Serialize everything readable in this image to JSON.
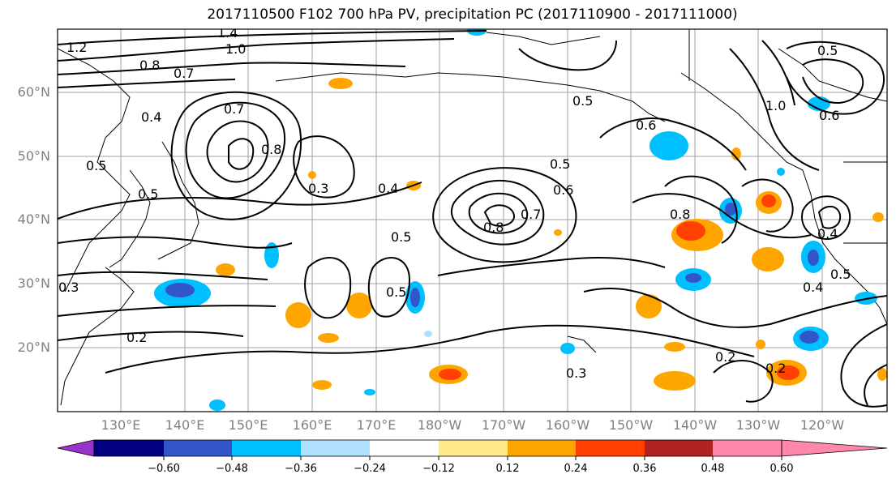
{
  "title": "2017110500 F102 700 hPa PV, precipitation PC (2017110900 - 2017111000)",
  "lat_labels": [
    "60°N",
    "50°N",
    "40°N",
    "30°N",
    "20°N"
  ],
  "lon_labels": [
    "130°E",
    "140°E",
    "150°E",
    "160°E",
    "170°E",
    "180°W",
    "170°W",
    "160°W",
    "150°W",
    "140°W",
    "130°W",
    "120°W"
  ],
  "colorbar": {
    "ticks": [
      "−0.60",
      "−0.48",
      "−0.36",
      "−0.24",
      "−0.12",
      "0.12",
      "0.24",
      "0.36",
      "0.48",
      "0.60"
    ],
    "colors": [
      "#9933cc",
      "#000080",
      "#3355cc",
      "#00bfff",
      "#b0e0ff",
      "#ffffff",
      "#ffeb8a",
      "#ffa500",
      "#ff4000",
      "#b22222",
      "#ff88aa"
    ]
  },
  "contour_labels": [
    "1.2",
    "1.4",
    "1.0",
    "0.8",
    "0.7",
    "0.4",
    "0.5",
    "0.5",
    "0.7",
    "0.8",
    "0.3",
    "0.4",
    "0.5",
    "0.5",
    "0.6",
    "0.5",
    "0.6",
    "0.8",
    "0.7",
    "0.8",
    "0.4",
    "0.6",
    "1.0",
    "0.5",
    "0.3",
    "0.4",
    "0.5",
    "0.2",
    "0.3",
    "0.2",
    "0.2",
    "0.5"
  ]
}
